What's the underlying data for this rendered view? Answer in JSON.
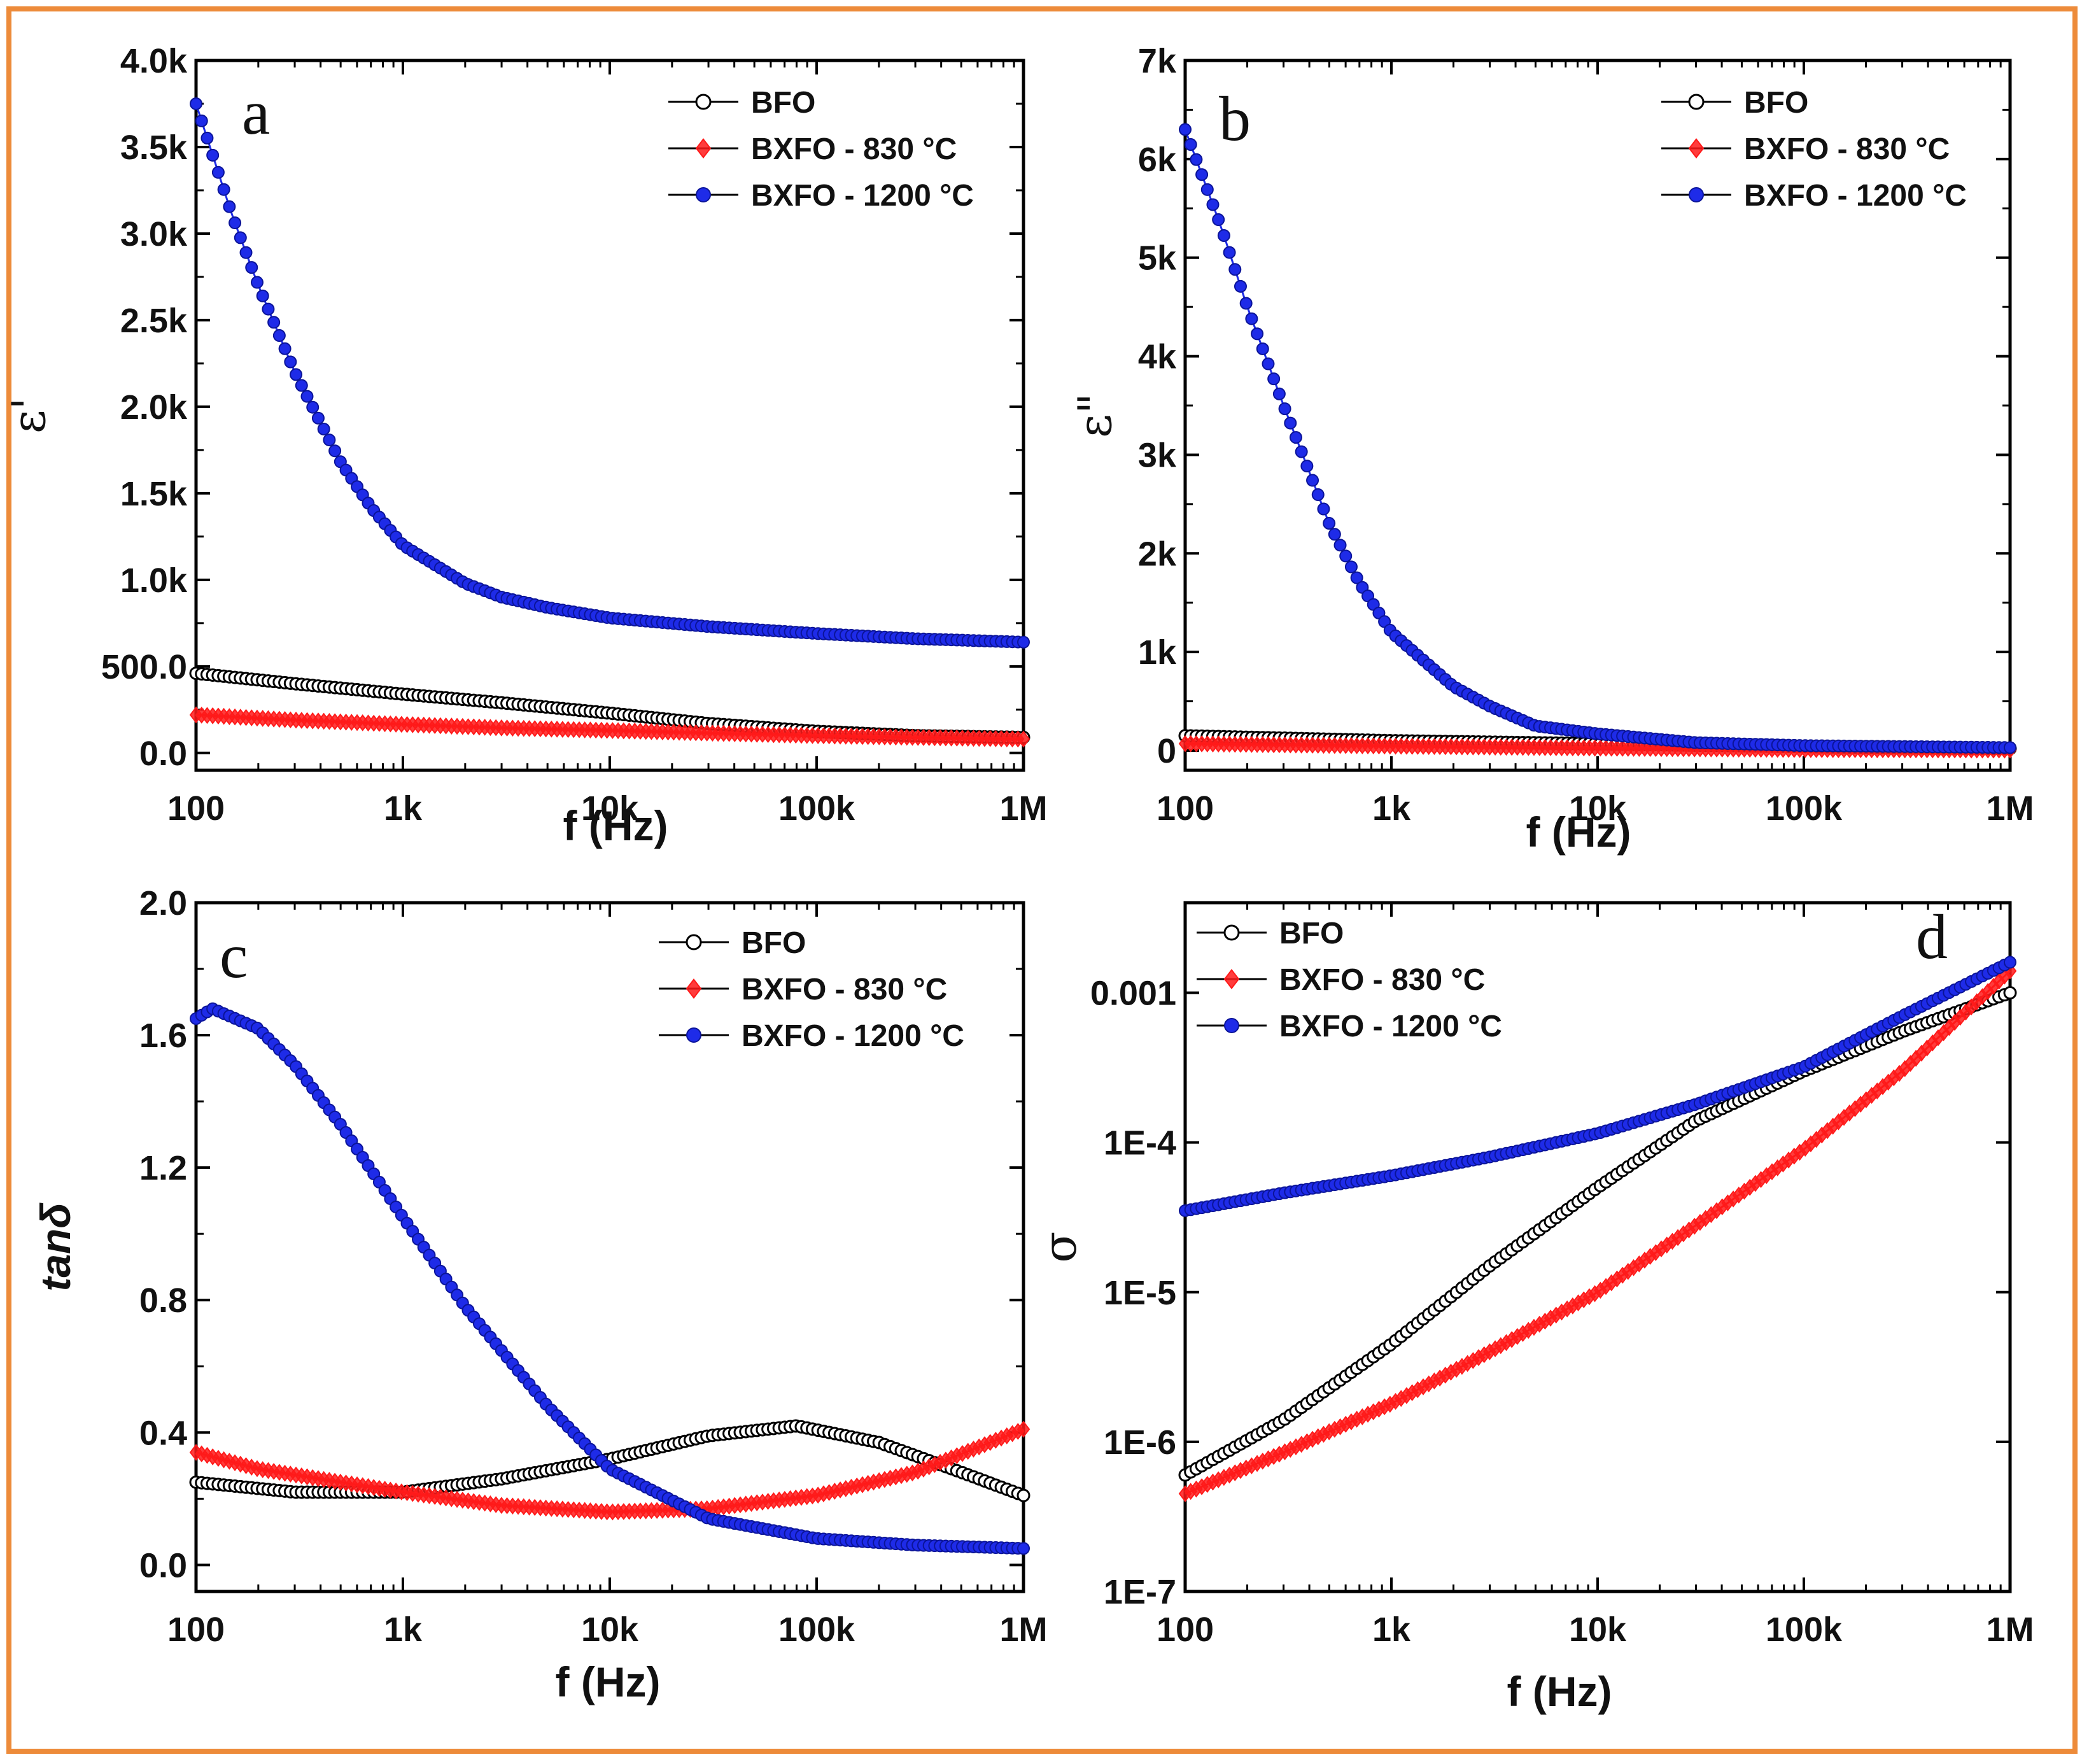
{
  "colors": {
    "BFO": "#000000",
    "BXFO_830": "#FF1A1A",
    "BXFO_1200": "#1E2BE8",
    "frame": "#ED8B3A"
  },
  "legend": [
    "BFO",
    "BXFO - 830 °C",
    "BXFO - 1200 °C"
  ],
  "chart_data": [
    {
      "id": "a",
      "type": "scatter",
      "panel_label": "a",
      "xlabel": "f (Hz)",
      "ylabel": "ε'",
      "xscale": "log",
      "yscale": "linear",
      "xlim": [
        100,
        1000000
      ],
      "ylim": [
        -100,
        4000
      ],
      "xticks": [
        100,
        1000,
        10000,
        100000,
        1000000
      ],
      "xtick_labels": [
        "100",
        "1k",
        "10k",
        "100k",
        "1M"
      ],
      "yticks": [
        0,
        500,
        1000,
        1500,
        2000,
        2500,
        3000,
        3500,
        4000
      ],
      "ytick_labels": [
        "0.0",
        "500.0",
        "1.0k",
        "1.5k",
        "2.0k",
        "2.5k",
        "3.0k",
        "3.5k",
        "4.0k"
      ],
      "legend_position": "top-right",
      "series": [
        {
          "name": "BFO",
          "color": "BFO",
          "x": [
            100,
            300,
            1000,
            3000,
            10000,
            30000,
            100000,
            300000,
            1000000
          ],
          "y": [
            460,
            400,
            340,
            290,
            230,
            170,
            125,
            100,
            90
          ]
        },
        {
          "name": "BXFO - 830 °C",
          "color": "BXFO_830",
          "x": [
            100,
            300,
            1000,
            3000,
            10000,
            30000,
            100000,
            300000,
            1000000
          ],
          "y": [
            220,
            190,
            165,
            145,
            130,
            115,
            100,
            90,
            80
          ]
        },
        {
          "name": "BXFO - 1200 °C",
          "color": "BXFO_1200",
          "x": [
            100,
            150,
            200,
            300,
            500,
            700,
            1000,
            2000,
            3000,
            5000,
            10000,
            30000,
            100000,
            300000,
            1000000
          ],
          "y": [
            3750,
            3100,
            2700,
            2200,
            1680,
            1420,
            1200,
            980,
            900,
            840,
            780,
            730,
            690,
            660,
            640
          ]
        }
      ]
    },
    {
      "id": "b",
      "type": "scatter",
      "panel_label": "b",
      "xlabel": "f (Hz)",
      "ylabel": "ε\"",
      "xscale": "log",
      "yscale": "linear",
      "xlim": [
        100,
        1000000
      ],
      "ylim": [
        -200,
        7000
      ],
      "xticks": [
        100,
        1000,
        10000,
        100000,
        1000000
      ],
      "xtick_labels": [
        "100",
        "1k",
        "10k",
        "100k",
        "1M"
      ],
      "yticks": [
        0,
        1000,
        2000,
        3000,
        4000,
        5000,
        6000,
        7000
      ],
      "ytick_labels": [
        "0",
        "1k",
        "2k",
        "3k",
        "4k",
        "5k",
        "6k",
        "7k"
      ],
      "legend_position": "top-right",
      "series": [
        {
          "name": "BFO",
          "color": "BFO",
          "x": [
            100,
            1000,
            10000,
            100000,
            1000000
          ],
          "y": [
            150,
            100,
            70,
            40,
            20
          ]
        },
        {
          "name": "BXFO - 830 °C",
          "color": "BXFO_830",
          "x": [
            100,
            1000,
            10000,
            100000,
            1000000
          ],
          "y": [
            70,
            45,
            25,
            10,
            5
          ]
        },
        {
          "name": "BXFO - 1200 °C",
          "color": "BXFO_1200",
          "x": [
            100,
            150,
            200,
            300,
            500,
            700,
            1000,
            2000,
            3000,
            5000,
            10000,
            30000,
            100000,
            1000000
          ],
          "y": [
            6300,
            5300,
            4500,
            3500,
            2300,
            1700,
            1200,
            650,
            450,
            250,
            170,
            80,
            50,
            30
          ]
        }
      ]
    },
    {
      "id": "c",
      "type": "scatter",
      "panel_label": "c",
      "xlabel": "f (Hz)",
      "ylabel": "tanδ",
      "xscale": "log",
      "yscale": "linear",
      "xlim": [
        100,
        1000000
      ],
      "ylim": [
        -0.08,
        2.0
      ],
      "xticks": [
        100,
        1000,
        10000,
        100000,
        1000000
      ],
      "xtick_labels": [
        "100",
        "1k",
        "10k",
        "100k",
        "1M"
      ],
      "yticks": [
        0.0,
        0.4,
        0.8,
        1.2,
        1.6,
        2.0
      ],
      "ytick_labels": [
        "0.0",
        "0.4",
        "0.8",
        "1.2",
        "1.6",
        "2.0"
      ],
      "legend_position": "top-right",
      "series": [
        {
          "name": "BFO",
          "color": "BFO",
          "x": [
            100,
            300,
            1000,
            3000,
            10000,
            30000,
            80000,
            200000,
            500000,
            1000000
          ],
          "y": [
            0.25,
            0.22,
            0.22,
            0.26,
            0.32,
            0.39,
            0.42,
            0.37,
            0.28,
            0.21
          ]
        },
        {
          "name": "BXFO - 830 °C",
          "color": "BXFO_830",
          "x": [
            100,
            200,
            500,
            1000,
            3000,
            10000,
            30000,
            100000,
            300000,
            1000000
          ],
          "y": [
            0.34,
            0.29,
            0.25,
            0.22,
            0.18,
            0.16,
            0.17,
            0.21,
            0.28,
            0.41
          ]
        },
        {
          "name": "BXFO - 1200 °C",
          "color": "BXFO_1200",
          "x": [
            100,
            120,
            200,
            300,
            500,
            1000,
            2000,
            5000,
            10000,
            30000,
            100000,
            300000,
            1000000
          ],
          "y": [
            1.65,
            1.68,
            1.62,
            1.51,
            1.33,
            1.05,
            0.78,
            0.48,
            0.29,
            0.14,
            0.08,
            0.06,
            0.05
          ]
        }
      ]
    },
    {
      "id": "d",
      "type": "scatter",
      "panel_label": "d",
      "xlabel": "f (Hz)",
      "ylabel": "σ",
      "xscale": "log",
      "yscale": "log",
      "xlim": [
        100,
        1000000
      ],
      "ylim": [
        1e-07,
        0.004
      ],
      "xticks": [
        100,
        1000,
        10000,
        100000,
        1000000
      ],
      "xtick_labels": [
        "100",
        "1k",
        "10k",
        "100k",
        "1M"
      ],
      "yticks": [
        1e-07,
        1e-06,
        1e-05,
        0.0001,
        0.001
      ],
      "ytick_labels": [
        "1E-7",
        "1E-6",
        "1E-5",
        "1E-4",
        "0.001"
      ],
      "legend_position": "top-left",
      "series": [
        {
          "name": "BFO",
          "color": "BFO",
          "x": [
            100,
            300,
            1000,
            3000,
            10000,
            30000,
            100000,
            300000,
            1000000
          ],
          "y": [
            6e-07,
            1.4e-06,
            4.5e-06,
            1.5e-05,
            5e-05,
            0.00014,
            0.0003,
            0.00055,
            0.001
          ]
        },
        {
          "name": "BXFO - 830 °C",
          "color": "BXFO_830",
          "x": [
            100,
            300,
            1000,
            3000,
            10000,
            30000,
            100000,
            300000,
            1000000
          ],
          "y": [
            4.5e-07,
            8.5e-07,
            1.8e-06,
            4e-06,
            1e-05,
            2.8e-05,
            9e-05,
            0.0003,
            0.0014
          ]
        },
        {
          "name": "BXFO - 1200 °C",
          "color": "BXFO_1200",
          "x": [
            100,
            300,
            1000,
            3000,
            10000,
            30000,
            100000,
            300000,
            1000000
          ],
          "y": [
            3.5e-05,
            4.6e-05,
            6e-05,
            8e-05,
            0.000115,
            0.00018,
            0.00032,
            0.0007,
            0.0016
          ]
        }
      ]
    }
  ]
}
